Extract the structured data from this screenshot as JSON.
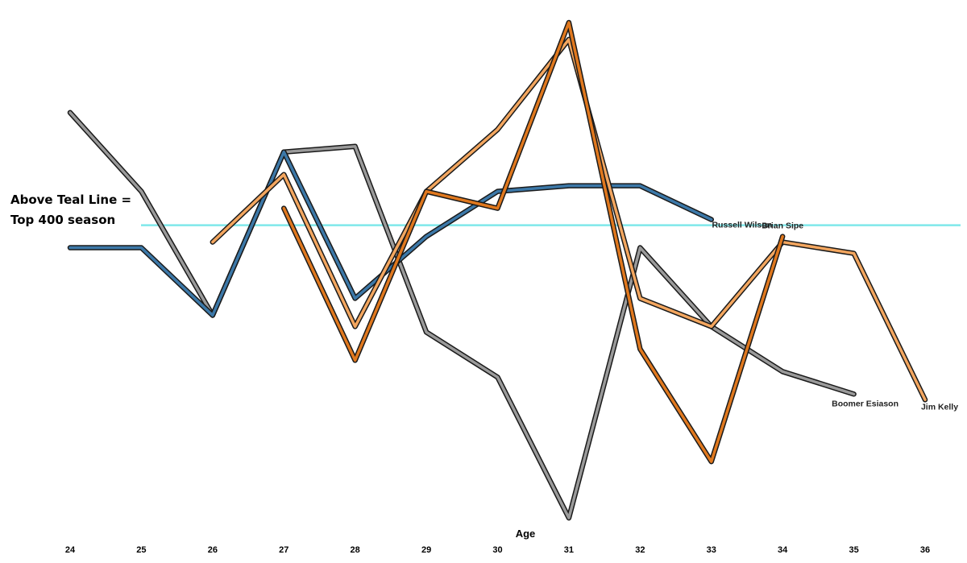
{
  "chart_data": {
    "type": "line",
    "title": "",
    "xlabel": "Age",
    "ylabel": "",
    "x": [
      24,
      25,
      26,
      27,
      28,
      29,
      30,
      31,
      32,
      33,
      34,
      35,
      36
    ],
    "xlim": [
      24,
      36
    ],
    "ylim": [
      0,
      100
    ],
    "grid": false,
    "legend": "none",
    "reference_line": {
      "y": 60,
      "color": "#7fe8ea"
    },
    "annotation": {
      "line1": "Above Teal Line =",
      "line2": "Top 400 season"
    },
    "series": [
      {
        "name": "Boomer Esiason",
        "color": "#9a9a9a",
        "points": [
          [
            24,
            80
          ],
          [
            25,
            66
          ],
          [
            26,
            44
          ],
          [
            27,
            73
          ],
          [
            28,
            74
          ],
          [
            29,
            41
          ],
          [
            30,
            33
          ],
          [
            31,
            8
          ],
          [
            32,
            56
          ],
          [
            33,
            42
          ],
          [
            34,
            34
          ],
          [
            35,
            30
          ]
        ]
      },
      {
        "name": "Russell Wilson",
        "color": "#3c78a8",
        "points": [
          [
            24,
            56
          ],
          [
            25,
            56
          ],
          [
            26,
            44
          ],
          [
            27,
            73
          ],
          [
            28,
            47
          ],
          [
            29,
            58
          ],
          [
            30,
            66
          ],
          [
            31,
            67
          ],
          [
            32,
            67
          ],
          [
            33,
            61
          ]
        ]
      },
      {
        "name": "Jim Kelly",
        "color": "#f3a65f",
        "points": [
          [
            26,
            57
          ],
          [
            27,
            69
          ],
          [
            28,
            42
          ],
          [
            29,
            66
          ],
          [
            30,
            77
          ],
          [
            31,
            93
          ],
          [
            32,
            47
          ],
          [
            33,
            42
          ],
          [
            34,
            57
          ],
          [
            35,
            55
          ],
          [
            36,
            29
          ]
        ]
      },
      {
        "name": "Brian Sipe",
        "color": "#e0781e",
        "points": [
          [
            27,
            63
          ],
          [
            28,
            36
          ],
          [
            29,
            66
          ],
          [
            30,
            63
          ],
          [
            31,
            96
          ],
          [
            32,
            38
          ],
          [
            33,
            18
          ],
          [
            34,
            58
          ]
        ]
      }
    ]
  }
}
